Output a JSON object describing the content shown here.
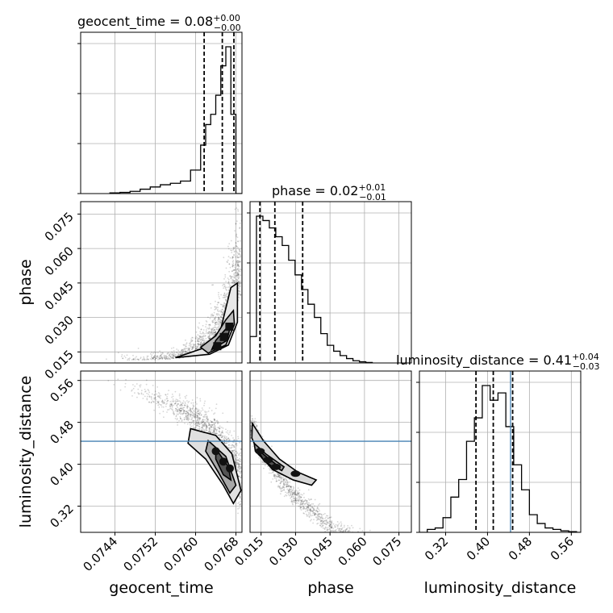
{
  "chart_data": {
    "type": "corner",
    "parameters": [
      "geocent_time",
      "phase",
      "luminosity_distance"
    ],
    "titles": [
      {
        "param": "geocent_time",
        "text": "geocent_time = 0.08",
        "sup": "+0.00",
        "sub": "−0.00"
      },
      {
        "param": "phase",
        "text": "phase = 0.02",
        "sup": "+0.01",
        "sub": "−0.01"
      },
      {
        "param": "luminosity_distance",
        "text": "luminosity_distance = 0.41",
        "sup": "+0.04",
        "sub": "−0.03"
      }
    ],
    "axis_labels": {
      "x": [
        "geocent_time",
        "phase",
        "luminosity_distance"
      ],
      "y": [
        "phase",
        "luminosity_distance"
      ]
    },
    "ranges": {
      "geocent_time": [
        0.07372,
        0.07692
      ],
      "phase": [
        0.0102,
        0.0804
      ],
      "luminosity_distance": [
        0.27,
        0.578
      ]
    },
    "ticks": {
      "geocent_time": [
        "0.0744",
        "0.0752",
        "0.0760",
        "0.0768"
      ],
      "phase": [
        "0.015",
        "0.030",
        "0.045",
        "0.060",
        "0.075"
      ],
      "luminosity_distance": [
        "0.32",
        "0.40",
        "0.48",
        "0.56"
      ]
    },
    "grid": true,
    "truth": {
      "param": "luminosity_distance",
      "value": 0.444,
      "color": "#4682b4"
    },
    "histograms": [
      {
        "param": "geocent_time",
        "bin_edges": [
          0.0743,
          0.0745,
          0.0747,
          0.0749,
          0.0751,
          0.0753,
          0.0755,
          0.0757,
          0.0759,
          0.0761,
          0.0762,
          0.0763,
          0.0764,
          0.0765,
          0.0766,
          0.0767,
          0.0768,
          0.07692
        ],
        "counts": [
          0.005,
          0.008,
          0.015,
          0.03,
          0.045,
          0.06,
          0.07,
          0.085,
          0.16,
          0.33,
          0.47,
          0.54,
          0.67,
          0.87,
          1.0,
          0.54,
          0.0
        ],
        "quantile_lines": [
          0.07617,
          0.07653,
          0.07676
        ]
      },
      {
        "param": "phase",
        "bin_edges": [
          0.0102,
          0.013,
          0.0158,
          0.0186,
          0.0214,
          0.0242,
          0.027,
          0.0298,
          0.0326,
          0.0354,
          0.0382,
          0.041,
          0.0438,
          0.0466,
          0.0494,
          0.0522,
          0.055,
          0.0578,
          0.0606,
          0.0634
        ],
        "counts": [
          0.18,
          1.0,
          0.97,
          0.92,
          0.86,
          0.8,
          0.7,
          0.6,
          0.5,
          0.4,
          0.31,
          0.2,
          0.12,
          0.08,
          0.05,
          0.03,
          0.015,
          0.008,
          0.003
        ],
        "quantile_lines": [
          0.0145,
          0.021,
          0.0331
        ]
      },
      {
        "param": "luminosity_distance",
        "bin_edges": [
          0.27,
          0.285,
          0.3,
          0.315,
          0.33,
          0.345,
          0.36,
          0.375,
          0.39,
          0.405,
          0.42,
          0.435,
          0.45,
          0.465,
          0.48,
          0.495,
          0.51,
          0.525,
          0.54,
          0.555,
          0.57,
          0.578
        ],
        "counts": [
          0.0,
          0.02,
          0.03,
          0.1,
          0.24,
          0.36,
          0.62,
          0.78,
          1.0,
          0.9,
          0.95,
          0.72,
          0.46,
          0.29,
          0.12,
          0.06,
          0.03,
          0.02,
          0.01,
          0.005,
          0.0
        ],
        "quantile_lines": [
          0.378,
          0.411,
          0.448
        ]
      }
    ],
    "scatter_panels": [
      {
        "x": "geocent_time",
        "y": "phase"
      },
      {
        "x": "geocent_time",
        "y": "luminosity_distance"
      },
      {
        "x": "phase",
        "y": "luminosity_distance"
      }
    ]
  }
}
